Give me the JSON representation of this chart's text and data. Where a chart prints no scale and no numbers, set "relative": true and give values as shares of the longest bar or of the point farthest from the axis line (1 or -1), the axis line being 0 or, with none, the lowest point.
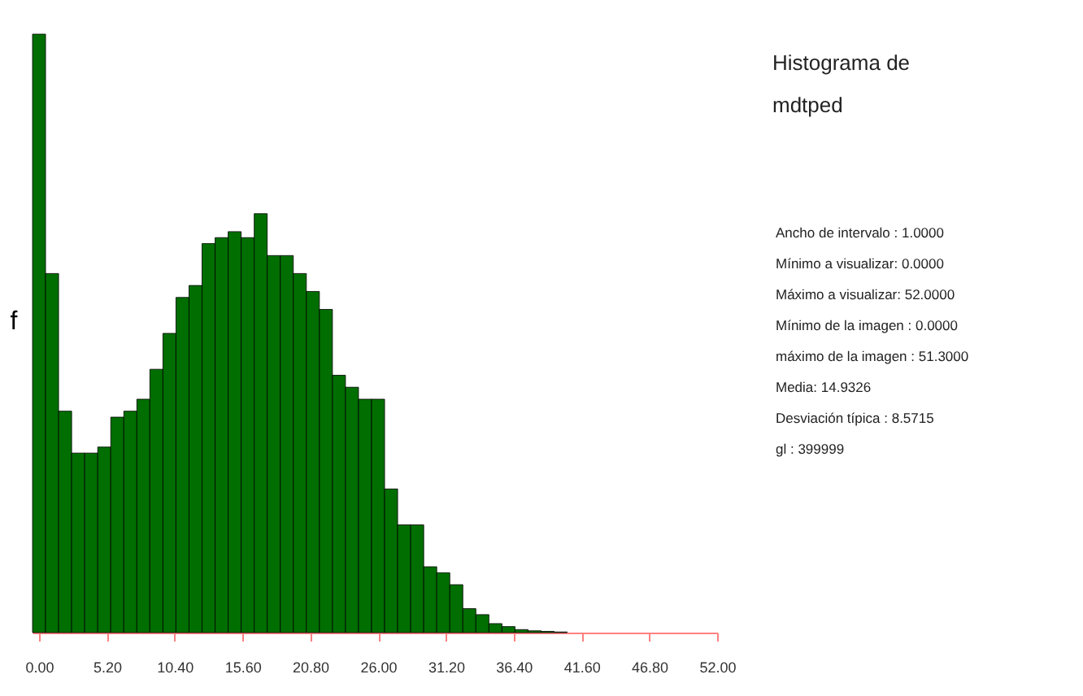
{
  "chart_data": {
    "type": "bar",
    "title": "Histograma de\nmdtped",
    "ylabel": "f",
    "relative": true,
    "color": "#006e00",
    "x": [
      0,
      1,
      2,
      3,
      4,
      5,
      6,
      7,
      8,
      9,
      10,
      11,
      12,
      13,
      14,
      15,
      16,
      17,
      18,
      19,
      20,
      21,
      22,
      23,
      24,
      25,
      26,
      27,
      28,
      29,
      30,
      31,
      32,
      33,
      34,
      35,
      36,
      37,
      38,
      39,
      40,
      41,
      42,
      43,
      44,
      45,
      46,
      47,
      48,
      49,
      50,
      51
    ],
    "values": [
      1.0,
      0.6,
      0.37,
      0.3,
      0.3,
      0.31,
      0.36,
      0.37,
      0.39,
      0.44,
      0.5,
      0.56,
      0.58,
      0.65,
      0.66,
      0.67,
      0.66,
      0.7,
      0.63,
      0.63,
      0.6,
      0.57,
      0.54,
      0.43,
      0.41,
      0.39,
      0.39,
      0.24,
      0.18,
      0.18,
      0.11,
      0.1,
      0.08,
      0.04,
      0.03,
      0.015,
      0.01,
      0.005,
      0.003,
      0.002,
      0.001,
      0,
      0,
      0,
      0,
      0,
      0,
      0,
      0,
      0,
      0,
      0
    ],
    "xlim": [
      -0.5,
      52
    ],
    "xticks": [
      {
        "value": 0,
        "label": "0.00"
      },
      {
        "value": 5.2,
        "label": "5.20"
      },
      {
        "value": 10.4,
        "label": "10.40"
      },
      {
        "value": 15.6,
        "label": "15.60"
      },
      {
        "value": 20.8,
        "label": "20.80"
      },
      {
        "value": 26,
        "label": "26.00"
      },
      {
        "value": 31.2,
        "label": "31.20"
      },
      {
        "value": 36.4,
        "label": "36.40"
      },
      {
        "value": 41.6,
        "label": "41.60"
      },
      {
        "value": 46.8,
        "label": "46.80"
      },
      {
        "value": 52,
        "label": "52.00"
      }
    ],
    "grid": false,
    "annotations": [
      "Ancho de intervalo : 1.0000",
      "Mínimo a visualizar: 0.0000",
      "Máximo a visualizar: 52.0000",
      "Mínimo de la imagen : 0.0000",
      "máximo de la imagen : 51.3000",
      "Media: 14.9326",
      "Desviación típica : 8.5715",
      "gl : 399999"
    ]
  }
}
